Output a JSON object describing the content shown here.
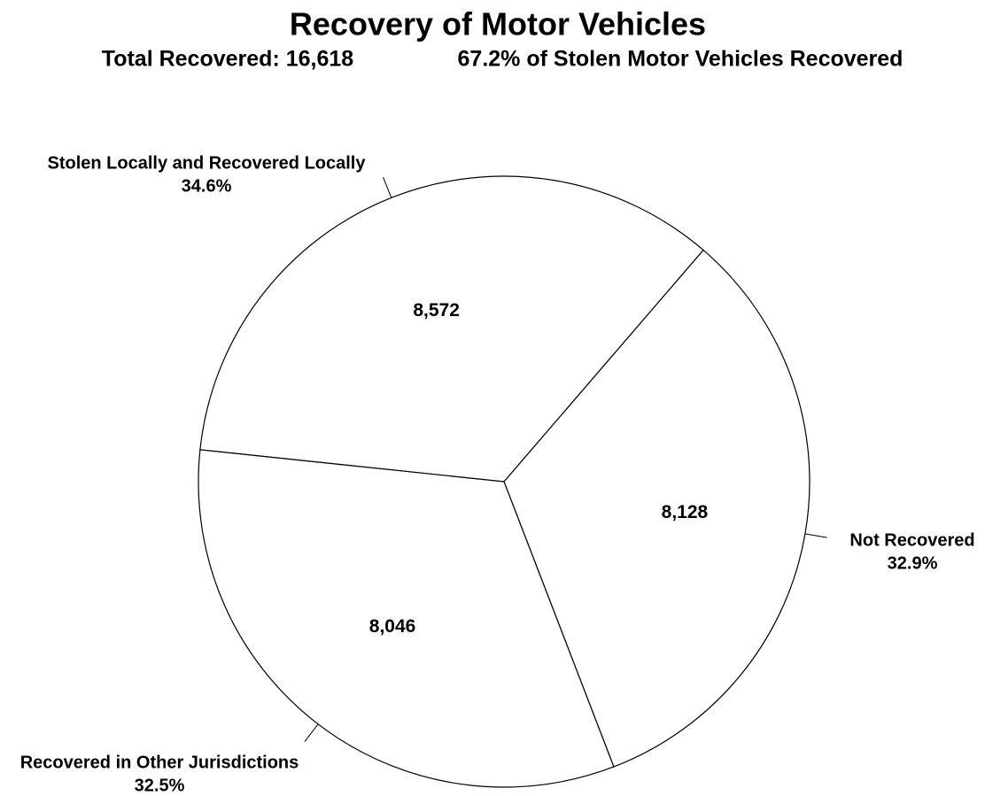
{
  "chart_data": {
    "type": "pie",
    "title": "Recovery of Motor Vehicles",
    "subtitles": [
      "Total Recovered: 16,618",
      "67.2% of Stolen Motor Vehicles Recovered"
    ],
    "categories": [
      "Stolen Locally and Recovered Locally",
      "Not Recovered",
      "Recovered in Other Jurisdictions"
    ],
    "values": [
      8572,
      8128,
      8046
    ],
    "value_labels": [
      "8,572",
      "8,128",
      "8,046"
    ],
    "percent_labels": [
      "34.6%",
      "32.9%",
      "32.5%"
    ],
    "color": "#ffffff"
  }
}
